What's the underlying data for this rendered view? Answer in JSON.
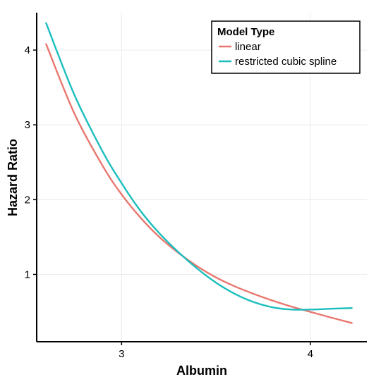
{
  "chart_data": {
    "type": "line",
    "xlabel": "Albumin",
    "ylabel": "Hazard Ratio",
    "xlim": [
      2.55,
      4.3
    ],
    "ylim": [
      0.1,
      4.5
    ],
    "x_ticks": [
      3,
      4
    ],
    "y_ticks": [
      1,
      2,
      3,
      4
    ],
    "grid": true,
    "legend": {
      "title": "Model Type",
      "placement": "top-right"
    },
    "series": [
      {
        "name": "linear",
        "color": "#E8776F",
        "x": [
          2.6,
          2.75,
          2.9,
          3.0,
          3.1,
          3.2,
          3.3,
          3.4,
          3.5,
          3.6,
          3.7,
          3.8,
          3.9,
          4.0,
          4.1,
          4.22
        ],
        "y": [
          4.08,
          3.15,
          2.45,
          2.07,
          1.76,
          1.5,
          1.29,
          1.11,
          0.96,
          0.84,
          0.74,
          0.65,
          0.57,
          0.5,
          0.43,
          0.35
        ]
      },
      {
        "name": "restricted cubic spline",
        "color": "#1BBEBE",
        "x": [
          2.6,
          2.75,
          2.9,
          3.0,
          3.1,
          3.2,
          3.3,
          3.4,
          3.5,
          3.6,
          3.7,
          3.8,
          3.9,
          4.0,
          4.1,
          4.22
        ],
        "y": [
          4.36,
          3.4,
          2.64,
          2.22,
          1.85,
          1.55,
          1.3,
          1.08,
          0.89,
          0.74,
          0.63,
          0.56,
          0.53,
          0.53,
          0.54,
          0.55
        ]
      }
    ]
  }
}
